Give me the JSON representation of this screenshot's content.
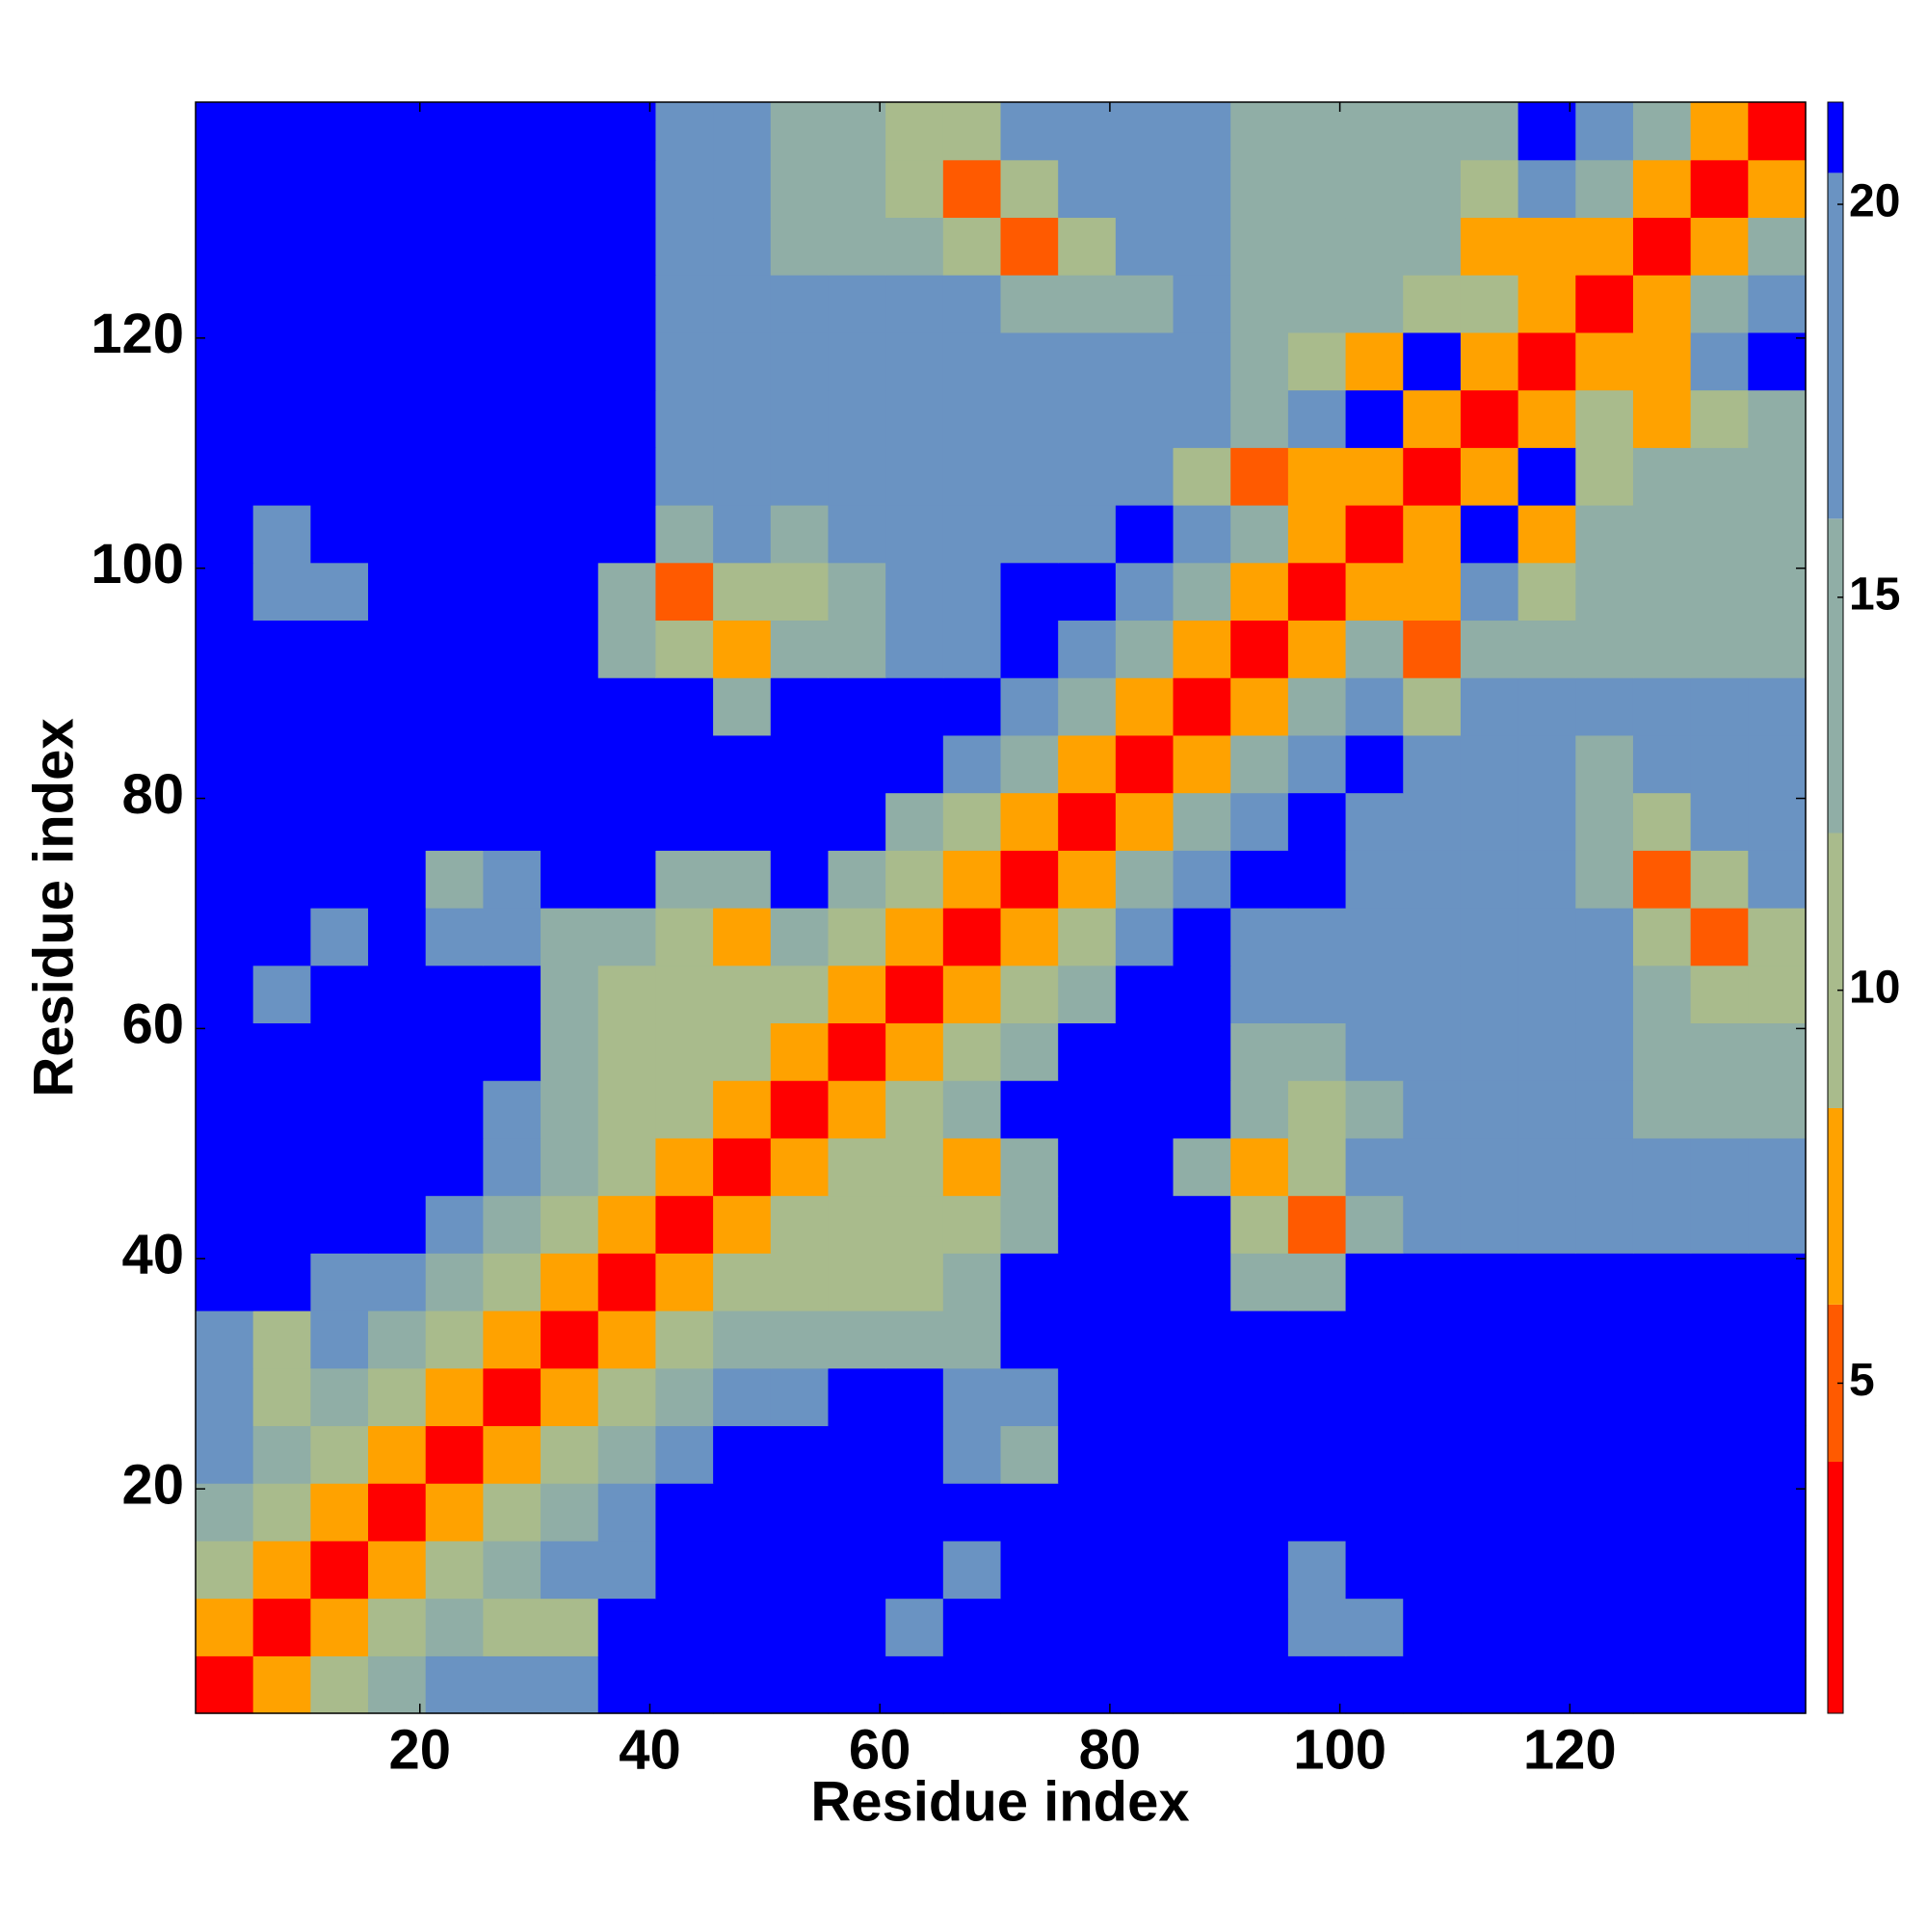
{
  "chart_data": {
    "type": "heatmap",
    "x_label": "Residue index",
    "y_label": "Residue index",
    "xbins": [
      0.5,
      5.5,
      10.5,
      15.5,
      20.5,
      25.5,
      30.5,
      35.5,
      40.5,
      45.5,
      50.5,
      55.5,
      60.5,
      65.5,
      70.5,
      75.5,
      80.5,
      85.5,
      90.5,
      95.5,
      100.5,
      105.5,
      110.5,
      115.5,
      120.5,
      125.5,
      130.5,
      135.5,
      140.5
    ],
    "ybins": [
      0.5,
      5.5,
      10.5,
      15.5,
      20.5,
      25.5,
      30.5,
      35.5,
      40.5,
      45.5,
      50.5,
      55.5,
      60.5,
      65.5,
      70.5,
      75.5,
      80.5,
      85.5,
      90.5,
      95.5,
      100.5,
      105.5,
      110.5,
      115.5,
      120.5,
      125.5,
      130.5,
      135.5,
      140.5
    ],
    "xlim": [
      0.5,
      140.5
    ],
    "ylim": [
      0.5,
      140.5
    ],
    "xticks": [
      20,
      40,
      60,
      80,
      100,
      120
    ],
    "yticks": [
      20,
      40,
      60,
      80,
      100,
      120
    ],
    "zlim": [
      0.8,
      21.3
    ],
    "zticks": [
      5,
      10,
      15,
      20
    ],
    "colorscale": [
      {
        "max": 4,
        "color": "#ff0000"
      },
      {
        "max": 6,
        "color": "#ff5a00"
      },
      {
        "max": 8.5,
        "color": "#ffa200"
      },
      {
        "max": 12,
        "color": "#a9bb8c"
      },
      {
        "max": 16,
        "color": "#90aea6"
      },
      {
        "max": 20.4,
        "color": "#6a93c2"
      },
      {
        "max": 21.3,
        "color": "#0000ff"
      }
    ],
    "z": [
      [
        3.8,
        7,
        11,
        15,
        19,
        20,
        18,
        22,
        22,
        22,
        22,
        22,
        22,
        22,
        22,
        22,
        22,
        22,
        22,
        22,
        22,
        22,
        22,
        22,
        22,
        22,
        22,
        22
      ],
      [
        7,
        3.8,
        7,
        11,
        15,
        12,
        10,
        22,
        22,
        22,
        22,
        22,
        18,
        22,
        22,
        22,
        22,
        22,
        22,
        17,
        19,
        22,
        22,
        22,
        22,
        22,
        22,
        22
      ],
      [
        11,
        7,
        3.8,
        7,
        11,
        15,
        17,
        19,
        22,
        22,
        22,
        22,
        22,
        17,
        22,
        22,
        22,
        22,
        22,
        20,
        22,
        22,
        22,
        22,
        22,
        22,
        22,
        22
      ],
      [
        15,
        11,
        7,
        3.8,
        7,
        11,
        15,
        19,
        21,
        22,
        22,
        22,
        22,
        22,
        22,
        22,
        22,
        22,
        22,
        22,
        22,
        22,
        22,
        22,
        22,
        22,
        22,
        22
      ],
      [
        19,
        15,
        11,
        7,
        3.8,
        7,
        11,
        15,
        18,
        22,
        22,
        22,
        22,
        19,
        16,
        22,
        22,
        22,
        22,
        22,
        22,
        22,
        22,
        22,
        22,
        22,
        22,
        22
      ],
      [
        20,
        12,
        15,
        11,
        7,
        3.8,
        7,
        11,
        14,
        17,
        18,
        22,
        22,
        18,
        17,
        22,
        22,
        22,
        22,
        22,
        22,
        22,
        22,
        22,
        22,
        22,
        22,
        22
      ],
      [
        18,
        10,
        17,
        15,
        11,
        7,
        3.8,
        7,
        12,
        15,
        13,
        14,
        16,
        15,
        22,
        22,
        22,
        22,
        22,
        22,
        22,
        22,
        22,
        22,
        22,
        22,
        22,
        22
      ],
      [
        22,
        22,
        19,
        19,
        15,
        11,
        7,
        3.8,
        7,
        11,
        11,
        10,
        12,
        14,
        22,
        22,
        22,
        22,
        16,
        13,
        22,
        22,
        22,
        22,
        22,
        22,
        22,
        22
      ],
      [
        22,
        22,
        22,
        21,
        18,
        14,
        12,
        7,
        3.8,
        7,
        11,
        9,
        10,
        11,
        16,
        22,
        22,
        22,
        11,
        6,
        13,
        17,
        17,
        17,
        17,
        17,
        17,
        20
      ],
      [
        22,
        22,
        22,
        22,
        22,
        17,
        15,
        11,
        7,
        3.8,
        7,
        11,
        9,
        8,
        15,
        22,
        22,
        15,
        7,
        10,
        17,
        17,
        17,
        17,
        17,
        17,
        17,
        17
      ],
      [
        22,
        22,
        22,
        22,
        22,
        18,
        13,
        11,
        11,
        7,
        3.8,
        7,
        11,
        15,
        21,
        22,
        22,
        22,
        14,
        12,
        14,
        17,
        17,
        17,
        17,
        16,
        15,
        14
      ],
      [
        22,
        22,
        22,
        22,
        22,
        22,
        14,
        10,
        9,
        11,
        7,
        3.8,
        7,
        11,
        15,
        21,
        22,
        22,
        15,
        15,
        17,
        17,
        17,
        17,
        17,
        14,
        15,
        15
      ],
      [
        22,
        18,
        22,
        22,
        22,
        22,
        16,
        12,
        10,
        9,
        11,
        7,
        3.8,
        7,
        11,
        15,
        21,
        22,
        20,
        20,
        17,
        17,
        17,
        17,
        17,
        14,
        12,
        10
      ],
      [
        22,
        22,
        17,
        22,
        19,
        18,
        15,
        14,
        11,
        8,
        15,
        11,
        7,
        3.8,
        7,
        11,
        18,
        21,
        20,
        20,
        17,
        17,
        17,
        17,
        17,
        9,
        6,
        11
      ],
      [
        22,
        22,
        22,
        22,
        16,
        17,
        22,
        22,
        16,
        15,
        21,
        15,
        11,
        7,
        3.8,
        7,
        13,
        18,
        21,
        22,
        17,
        17,
        17,
        17,
        14,
        6,
        9,
        17
      ],
      [
        22,
        22,
        22,
        22,
        22,
        22,
        22,
        22,
        22,
        22,
        22,
        21,
        15,
        11,
        7,
        3.8,
        8,
        13,
        18,
        21,
        17,
        17,
        17,
        17,
        13,
        12,
        17,
        17
      ],
      [
        22,
        22,
        22,
        22,
        22,
        22,
        22,
        22,
        22,
        22,
        22,
        22,
        21,
        18,
        13,
        8,
        3.8,
        8,
        13,
        18,
        21,
        17,
        17,
        17,
        15,
        17,
        17,
        17
      ],
      [
        22,
        22,
        22,
        22,
        22,
        22,
        22,
        22,
        22,
        15,
        22,
        22,
        22,
        21,
        18,
        13,
        8,
        3.8,
        8,
        13,
        18,
        12,
        17,
        17,
        17,
        17,
        17,
        17
      ],
      [
        22,
        22,
        22,
        22,
        22,
        22,
        22,
        16,
        11,
        7,
        14,
        15,
        20,
        20,
        21,
        18,
        13,
        8,
        3.8,
        8,
        13,
        6,
        13,
        16,
        16,
        16,
        16,
        16
      ],
      [
        22,
        17,
        20,
        22,
        22,
        22,
        22,
        13,
        6,
        10,
        12,
        15,
        20,
        20,
        22,
        21,
        18,
        13,
        8,
        3.8,
        8,
        8,
        18,
        12,
        16,
        16,
        16,
        16
      ],
      [
        22,
        19,
        22,
        22,
        22,
        22,
        22,
        22,
        13,
        17,
        14,
        17,
        17,
        17,
        17,
        17,
        21,
        18,
        13,
        8,
        3.8,
        8,
        21,
        8,
        13,
        16,
        16,
        16
      ],
      [
        22,
        22,
        22,
        22,
        22,
        22,
        22,
        22,
        17,
        17,
        17,
        17,
        17,
        17,
        17,
        17,
        17,
        12,
        6,
        8,
        8,
        3.8,
        8,
        21,
        10,
        13,
        16,
        16
      ],
      [
        22,
        22,
        22,
        22,
        22,
        22,
        22,
        22,
        17,
        17,
        17,
        17,
        17,
        17,
        17,
        17,
        17,
        17,
        13,
        18,
        21,
        8,
        3.8,
        8,
        9,
        7,
        12,
        16
      ],
      [
        22,
        22,
        22,
        22,
        22,
        22,
        22,
        22,
        17,
        17,
        17,
        17,
        17,
        17,
        17,
        17,
        17,
        17,
        16,
        12,
        8,
        21,
        8,
        3.8,
        8,
        8,
        18,
        21
      ],
      [
        22,
        22,
        22,
        22,
        22,
        22,
        22,
        22,
        17,
        17,
        17,
        17,
        17,
        17,
        14,
        13,
        15,
        17,
        16,
        16,
        13,
        10,
        9,
        8,
        3.8,
        8,
        13,
        18
      ],
      [
        22,
        22,
        22,
        22,
        22,
        22,
        22,
        22,
        17,
        17,
        16,
        14,
        14,
        9,
        6,
        12,
        17,
        17,
        16,
        16,
        16,
        13,
        7,
        8,
        8,
        3.8,
        8,
        13
      ],
      [
        22,
        22,
        22,
        22,
        22,
        22,
        22,
        22,
        17,
        17,
        15,
        15,
        12,
        6,
        9,
        17,
        17,
        17,
        16,
        16,
        16,
        16,
        12,
        18,
        13,
        8,
        3.8,
        8
      ],
      [
        22,
        22,
        22,
        22,
        22,
        22,
        22,
        22,
        20,
        17,
        14,
        15,
        10,
        11,
        17,
        17,
        17,
        17,
        16,
        16,
        16,
        16,
        16,
        21,
        18,
        13,
        8,
        3.8
      ]
    ]
  }
}
